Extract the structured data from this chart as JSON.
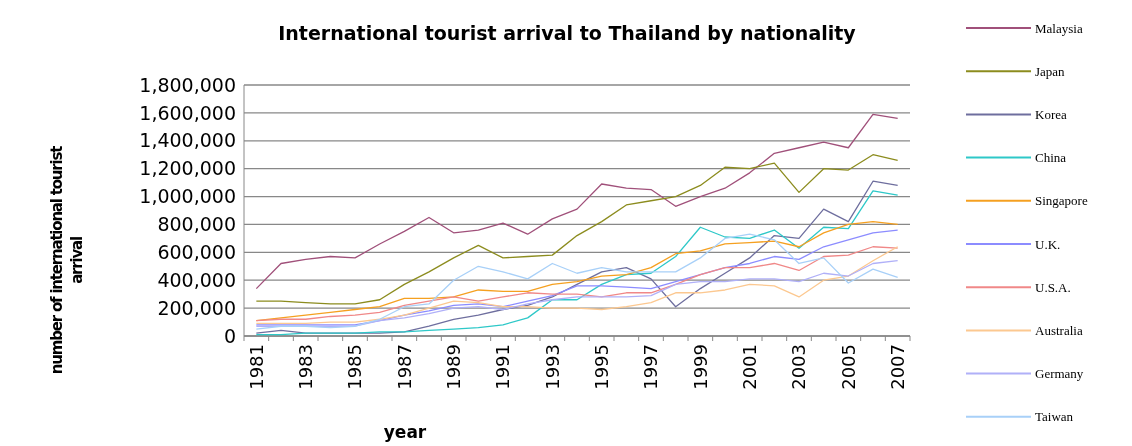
{
  "chart_data": {
    "type": "line",
    "title": "International tourist arrival to Thailand by nationality",
    "xlabel": "year",
    "ylabel": "number of international tourist arrival",
    "categories": [
      "1981",
      null,
      "1983",
      null,
      "1985",
      null,
      "1987",
      null,
      "1989",
      null,
      "1991",
      null,
      "1993",
      null,
      "1995",
      null,
      "1997",
      null,
      "1999",
      null,
      "2001",
      null,
      "2003",
      null,
      "2005",
      null,
      "2007"
    ],
    "ylim": [
      0,
      1800000
    ],
    "yticks": [
      {
        "value": 0,
        "label": "0"
      },
      {
        "value": 200000,
        "label": "200,000"
      },
      {
        "value": 400000,
        "label": "400,000"
      },
      {
        "value": 600000,
        "label": "600,000"
      },
      {
        "value": 800000,
        "label": "800,000"
      },
      {
        "value": 1000000,
        "label": "1,000,000"
      },
      {
        "value": 1200000,
        "label": "1,200,000"
      },
      {
        "value": 1400000,
        "label": "1,400,000"
      },
      {
        "value": 1600000,
        "label": "1,600,000"
      },
      {
        "value": 1800000,
        "label": "1,800,000"
      }
    ],
    "grid": "y",
    "legend": "right",
    "marker": "none",
    "line_style": "solid",
    "series": [
      {
        "name": "Malaysia",
        "color": "#a0507a",
        "values": [
          340000,
          520000,
          550000,
          570000,
          560000,
          660000,
          750000,
          850000,
          740000,
          760000,
          810000,
          730000,
          840000,
          910000,
          1090000,
          1060000,
          1050000,
          930000,
          1000000,
          1060000,
          1170000,
          1310000,
          1350000,
          1390000,
          1350000,
          1590000,
          1560000
        ]
      },
      {
        "name": "Japan",
        "color": "#8c8c1e",
        "values": [
          250000,
          250000,
          240000,
          230000,
          230000,
          260000,
          370000,
          460000,
          560000,
          650000,
          560000,
          570000,
          580000,
          720000,
          820000,
          940000,
          970000,
          1000000,
          1080000,
          1210000,
          1200000,
          1240000,
          1030000,
          1200000,
          1190000,
          1300000,
          1260000
        ]
      },
      {
        "name": "Korea",
        "color": "#6e6e9e",
        "values": [
          20000,
          40000,
          20000,
          20000,
          20000,
          20000,
          30000,
          70000,
          120000,
          150000,
          190000,
          220000,
          280000,
          370000,
          460000,
          490000,
          410000,
          210000,
          340000,
          450000,
          560000,
          720000,
          700000,
          910000,
          820000,
          1110000,
          1080000
        ]
      },
      {
        "name": "China",
        "color": "#2ec8c8",
        "values": [
          10000,
          10000,
          20000,
          20000,
          20000,
          30000,
          30000,
          40000,
          50000,
          60000,
          80000,
          130000,
          260000,
          260000,
          370000,
          440000,
          450000,
          570000,
          780000,
          710000,
          700000,
          760000,
          630000,
          780000,
          770000,
          1040000,
          1010000
        ]
      },
      {
        "name": "Singapore",
        "color": "#f5a020",
        "values": [
          110000,
          130000,
          150000,
          170000,
          190000,
          210000,
          270000,
          270000,
          280000,
          330000,
          320000,
          320000,
          370000,
          390000,
          430000,
          440000,
          490000,
          590000,
          610000,
          660000,
          670000,
          680000,
          640000,
          740000,
          800000,
          820000,
          800000
        ]
      },
      {
        "name": "U.K.",
        "color": "#8c8cff",
        "values": [
          80000,
          80000,
          80000,
          80000,
          80000,
          110000,
          150000,
          180000,
          220000,
          230000,
          210000,
          250000,
          290000,
          360000,
          360000,
          350000,
          340000,
          390000,
          440000,
          490000,
          520000,
          570000,
          550000,
          640000,
          690000,
          740000,
          760000
        ]
      },
      {
        "name": "U.S.A.",
        "color": "#f08888",
        "values": [
          110000,
          120000,
          120000,
          140000,
          150000,
          170000,
          220000,
          250000,
          280000,
          250000,
          280000,
          310000,
          300000,
          300000,
          280000,
          310000,
          310000,
          370000,
          440000,
          490000,
          490000,
          520000,
          470000,
          570000,
          580000,
          640000,
          630000
        ]
      },
      {
        "name": "Australia",
        "color": "#fcc890",
        "values": [
          90000,
          90000,
          90000,
          100000,
          100000,
          120000,
          150000,
          200000,
          250000,
          240000,
          210000,
          210000,
          200000,
          200000,
          190000,
          210000,
          240000,
          310000,
          310000,
          330000,
          370000,
          360000,
          280000,
          400000,
          430000,
          540000,
          640000
        ]
      },
      {
        "name": "Germany",
        "color": "#b0b0f8",
        "values": [
          70000,
          70000,
          70000,
          70000,
          70000,
          110000,
          130000,
          160000,
          200000,
          210000,
          190000,
          230000,
          260000,
          280000,
          280000,
          280000,
          290000,
          370000,
          390000,
          390000,
          410000,
          410000,
          390000,
          450000,
          430000,
          520000,
          540000
        ]
      },
      {
        "name": "Taiwan",
        "color": "#a8d0f8",
        "values": [
          50000,
          70000,
          70000,
          60000,
          70000,
          120000,
          210000,
          230000,
          400000,
          500000,
          460000,
          410000,
          520000,
          450000,
          490000,
          460000,
          460000,
          460000,
          560000,
          700000,
          730000,
          690000,
          520000,
          560000,
          380000,
          480000,
          420000
        ]
      }
    ]
  }
}
